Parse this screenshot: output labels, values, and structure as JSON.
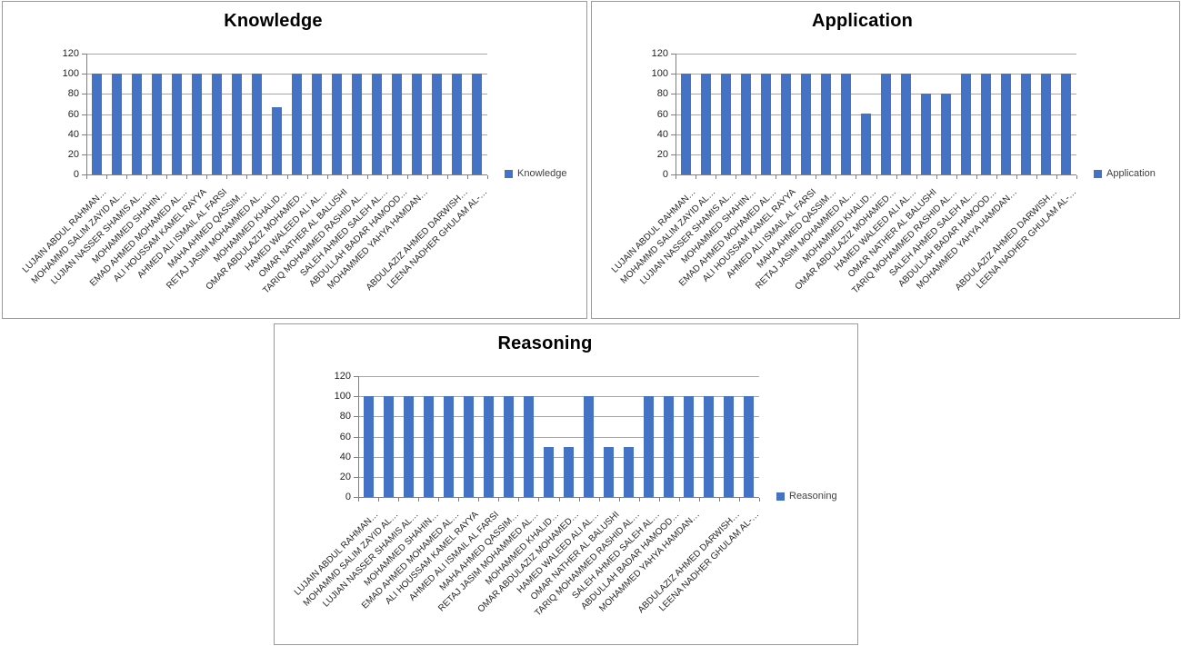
{
  "colors": {
    "bar": "#4472C4",
    "gridline": "#A6A6A6",
    "axis": "#808080",
    "panel_border": "#9a9a9a",
    "title_text": "#000000",
    "axis_label_text": "#1f1f1f",
    "legend_text": "#404040",
    "background": "#ffffff"
  },
  "chart_data": [
    {
      "type": "bar",
      "title": "Knowledge",
      "series_name": "Knowledge",
      "legend_position": "right",
      "grid": true,
      "xlabel": "",
      "ylabel": "",
      "ylim": [
        0,
        120
      ],
      "y_ticks": [
        120,
        100,
        80,
        60,
        40,
        20,
        0
      ],
      "categories": [
        "LUJAIN ABDUL RAHMAN…",
        "MOHAMMD SALIM ZAYID AL…",
        "LUJIAN NASSER SHAMIS AL…",
        "MOHAMMED SHAHIN…",
        "EMAD AHMED MOHAMED AL…",
        "ALI HOUSSAM KAMEL RAYYA",
        "AHMED ALI ISMAIL AL FARSI",
        "MAHA AHMED QASSIM…",
        "RETAJ JASIM MOHAMMED AL…",
        "MOHAMMED KHALID…",
        "OMAR ABDULAZIZ MOHAMED…",
        "HAMED WALEED ALI AL…",
        "OMAR NATHER AL BALUSHI",
        "TARIQ MOHAMMED RASHID AL…",
        "SALEH AHMED SALEH AL…",
        "ABDULLAH BADAR HAMOOD…",
        "MOHAMMED YAHYA HAMDAN…",
        "",
        "ABDULAZIZ AHMED DARWISH…",
        "LEENA NADHER GHULAM AL-…"
      ],
      "values": [
        100,
        100,
        100,
        100,
        100,
        100,
        100,
        100,
        100,
        67,
        100,
        100,
        100,
        100,
        100,
        100,
        100,
        100,
        100,
        100
      ]
    },
    {
      "type": "bar",
      "title": "Application",
      "series_name": "Application",
      "legend_position": "right",
      "grid": true,
      "xlabel": "",
      "ylabel": "",
      "ylim": [
        0,
        120
      ],
      "y_ticks": [
        120,
        100,
        80,
        60,
        40,
        20,
        0
      ],
      "categories": [
        "LUJAIN ABDUL RAHMAN…",
        "MOHAMMD SALIM ZAYID AL…",
        "LUJIAN NASSER SHAMIS AL…",
        "MOHAMMED SHAHIN…",
        "EMAD AHMED MOHAMED AL…",
        "ALI HOUSSAM KAMEL RAYYA",
        "AHMED ALI ISMAIL AL FARSI",
        "MAHA AHMED QASSIM…",
        "RETAJ JASIM MOHAMMED AL…",
        "MOHAMMED KHALID…",
        "OMAR ABDULAZIZ MOHAMED…",
        "HAMED WALEED ALI AL…",
        "OMAR NATHER AL BALUSHI",
        "TARIQ MOHAMMED RASHID AL…",
        "SALEH AHMED SALEH AL…",
        "ABDULLAH BADAR HAMOOD…",
        "MOHAMMED YAHYA HAMDAN…",
        "",
        "ABDULAZIZ AHMED DARWISH…",
        "LEENA NADHER GHULAM AL-…"
      ],
      "values": [
        100,
        100,
        100,
        100,
        100,
        100,
        100,
        100,
        100,
        60,
        100,
        100,
        80,
        80,
        100,
        100,
        100,
        100,
        100,
        100
      ]
    },
    {
      "type": "bar",
      "title": "Reasoning",
      "series_name": "Reasoning",
      "legend_position": "right",
      "grid": true,
      "xlabel": "",
      "ylabel": "",
      "ylim": [
        0,
        120
      ],
      "y_ticks": [
        120,
        100,
        80,
        60,
        40,
        20,
        0
      ],
      "categories": [
        "LUJAIN ABDUL RAHMAN…",
        "MOHAMMD SALIM ZAYID AL…",
        "LUJIAN NASSER SHAMIS AL…",
        "MOHAMMED SHAHIN…",
        "EMAD AHMED MOHAMED AL…",
        "ALI HOUSSAM KAMEL RAYYA",
        "AHMED ALI ISMAIL AL FARSI",
        "MAHA AHMED QASSIM…",
        "RETAJ JASIM MOHAMMED AL…",
        "MOHAMMED KHALID…",
        "OMAR ABDULAZIZ MOHAMED…",
        "HAMED WALEED ALI AL…",
        "OMAR NATHER AL BALUSHI",
        "TARIQ MOHAMMED RASHID AL…",
        "SALEH AHMED SALEH AL…",
        "ABDULLAH BADAR HAMOOD…",
        "MOHAMMED YAHYA HAMDAN…",
        "",
        "ABDULAZIZ AHMED DARWISH…",
        "LEENA NADHER GHULAM AL-…"
      ],
      "values": [
        100,
        100,
        100,
        100,
        100,
        100,
        100,
        100,
        100,
        50,
        50,
        100,
        50,
        50,
        100,
        100,
        100,
        100,
        100,
        100
      ]
    }
  ]
}
